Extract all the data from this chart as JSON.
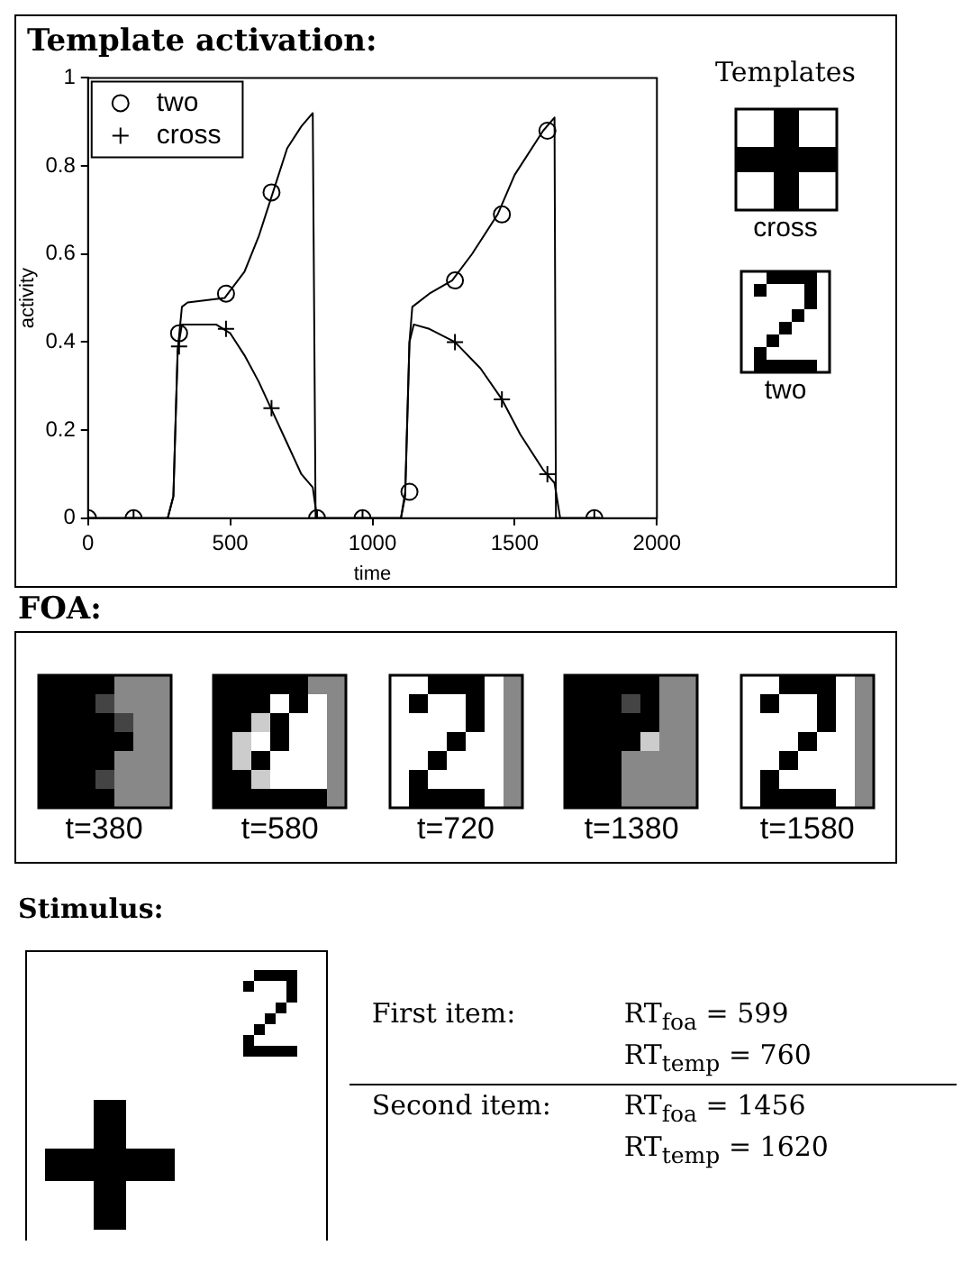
{
  "chart_data": [
    {
      "type": "line",
      "title": "Template activation:",
      "xlabel": "time",
      "ylabel": "activity",
      "xlim": [
        0,
        2000
      ],
      "xticks": [
        0,
        500,
        1000,
        1500,
        2000
      ],
      "ylim": [
        0,
        1
      ],
      "yticks": [
        0,
        0.2,
        0.4,
        0.6,
        0.8,
        1
      ],
      "legend": "top left",
      "grid": false,
      "series": [
        {
          "type": "line",
          "color": "#000000",
          "marker": "none",
          "x": [
            0,
            280,
            300,
            315,
            330,
            350,
            480,
            550,
            600,
            650,
            700,
            750,
            790,
            800,
            1100,
            1115,
            1130,
            1140,
            1200,
            1280,
            1350,
            1440,
            1500,
            1600,
            1640,
            1645,
            1800
          ],
          "values": [
            0,
            0,
            0.05,
            0.38,
            0.48,
            0.49,
            0.5,
            0.56,
            0.64,
            0.74,
            0.84,
            0.89,
            0.92,
            0,
            0,
            0.06,
            0.4,
            0.48,
            0.51,
            0.54,
            0.6,
            0.69,
            0.78,
            0.88,
            0.91,
            0,
            0
          ]
        },
        {
          "type": "line",
          "color": "#000000",
          "marker": "none",
          "x": [
            0,
            280,
            300,
            315,
            330,
            450,
            500,
            550,
            600,
            650,
            700,
            750,
            790,
            805,
            1100,
            1115,
            1130,
            1145,
            1200,
            1290,
            1380,
            1455,
            1520,
            1600,
            1640,
            1660,
            1800
          ],
          "values": [
            0,
            0,
            0.05,
            0.38,
            0.44,
            0.44,
            0.42,
            0.37,
            0.31,
            0.24,
            0.17,
            0.1,
            0.07,
            0,
            0,
            0.05,
            0.4,
            0.44,
            0.43,
            0.4,
            0.34,
            0.27,
            0.19,
            0.11,
            0.08,
            0,
            0
          ]
        },
        {
          "type": "scatter",
          "name": "two",
          "color": "#000000",
          "marker": "circle",
          "x": [
            0,
            160,
            320,
            485,
            645,
            805,
            965,
            1130,
            1290,
            1455,
            1615,
            1780
          ],
          "values": [
            0,
            0,
            0.42,
            0.51,
            0.74,
            0,
            0,
            0.06,
            0.54,
            0.69,
            0.88,
            0
          ]
        },
        {
          "type": "scatter",
          "name": "cross",
          "color": "#000000",
          "marker": "cross",
          "x": [
            0,
            160,
            320,
            485,
            645,
            805,
            965,
            1130,
            1290,
            1455,
            1615,
            1780
          ],
          "values": [
            0,
            0,
            0.39,
            0.43,
            0.25,
            0,
            0,
            null,
            0.4,
            0.27,
            0.1,
            0
          ]
        }
      ]
    },
    {
      "type": "other",
      "title": "Templates",
      "annotations": [
        "cross",
        "two"
      ]
    },
    {
      "type": "other",
      "title": "FOA:",
      "annotations": [
        "t=380",
        "t=580",
        "t=720",
        "t=1380",
        "t=1580"
      ]
    },
    {
      "type": "other",
      "title": "Stimulus:",
      "annotations": [
        "First item:",
        "RT$_{foa}$ = 599",
        "RT$_{temp}$ = 760",
        "Second item:",
        "RT$_{foa}$ = 1456",
        "RT$_{temp}$ = 1620"
      ]
    }
  ]
}
